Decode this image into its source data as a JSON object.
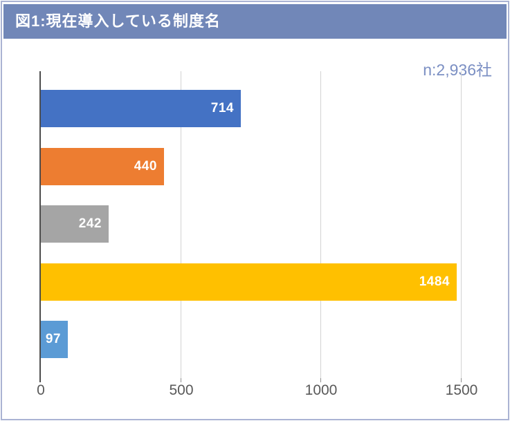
{
  "frame": {
    "border_color": "#aab3d3",
    "background": "#ffffff"
  },
  "header": {
    "title": "図1:現在導入している制度名",
    "bg_color": "#7187b8",
    "text_color": "#ffffff"
  },
  "annotation": {
    "sample_size": "n:2,936社",
    "color": "#7b8fc3"
  },
  "chart_data": {
    "type": "bar",
    "orientation": "horizontal",
    "title": "図1:現在導入している制度名",
    "annotation": "n:2,936社",
    "values": [
      714,
      440,
      242,
      1484,
      97
    ],
    "data_labels": [
      "714",
      "440",
      "242",
      "1484",
      "97"
    ],
    "bar_colors": [
      "#4472c4",
      "#ed7d31",
      "#a5a5a5",
      "#ffc000",
      "#5b9bd5"
    ],
    "data_label_color": "#ffffff",
    "xlim": [
      0,
      1500
    ],
    "x_tick_labels": [
      "0",
      "500",
      "1000",
      "1500"
    ],
    "x_tick_values": [
      0,
      500,
      1000,
      1500
    ],
    "grid": "vertical",
    "gridline_color": "#d2d2d2",
    "axis_line_color": "#4d4d4d",
    "tick_label_color": "#595959",
    "legend": "none"
  }
}
